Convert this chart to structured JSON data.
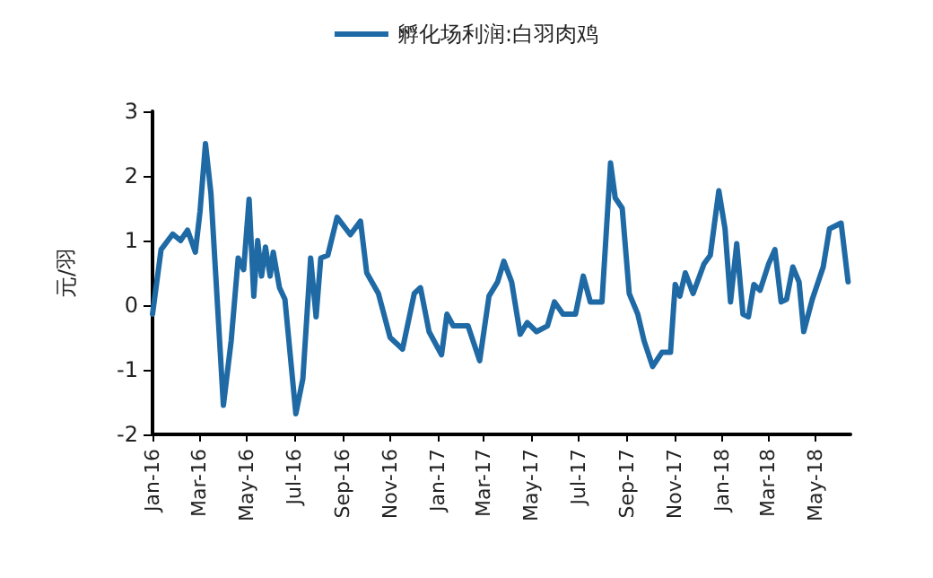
{
  "chart_data": {
    "type": "line",
    "ylabel": "元/羽",
    "legend": "top",
    "grid": false,
    "xlim": [
      "2016-01-01",
      "2018-06-15"
    ],
    "xticks": [
      {
        "value": "2016-01-01",
        "label": "Jan-16"
      },
      {
        "value": "2016-03-01",
        "label": "Mar-16"
      },
      {
        "value": "2016-05-01",
        "label": "May-16"
      },
      {
        "value": "2016-07-01",
        "label": "Jul-16"
      },
      {
        "value": "2016-09-01",
        "label": "Sep-16"
      },
      {
        "value": "2016-11-01",
        "label": "Nov-16"
      },
      {
        "value": "2017-01-01",
        "label": "Jan-17"
      },
      {
        "value": "2017-03-01",
        "label": "Mar-17"
      },
      {
        "value": "2017-05-01",
        "label": "May-17"
      },
      {
        "value": "2017-07-01",
        "label": "Jul-17"
      },
      {
        "value": "2017-09-01",
        "label": "Sep-17"
      },
      {
        "value": "2017-11-01",
        "label": "Nov-17"
      },
      {
        "value": "2018-01-01",
        "label": "Jan-18"
      },
      {
        "value": "2018-03-01",
        "label": "Mar-18"
      },
      {
        "value": "2018-05-01",
        "label": "May-18"
      }
    ],
    "ylim": [
      -2,
      3
    ],
    "yticks": [
      -2,
      -1,
      0,
      1,
      2,
      3
    ],
    "x": [
      "2016-01-01",
      "2016-01-12",
      "2016-01-27",
      "2016-02-06",
      "2016-02-15",
      "2016-02-25",
      "2016-03-02",
      "2016-03-09",
      "2016-03-16",
      "2016-04-01",
      "2016-04-11",
      "2016-04-20",
      "2016-04-27",
      "2016-05-04",
      "2016-05-10",
      "2016-05-15",
      "2016-05-20",
      "2016-05-25",
      "2016-05-31",
      "2016-06-04",
      "2016-06-12",
      "2016-06-19",
      "2016-07-03",
      "2016-07-12",
      "2016-07-22",
      "2016-07-29",
      "2016-08-04",
      "2016-08-13",
      "2016-08-25",
      "2016-09-11",
      "2016-09-24",
      "2016-10-02",
      "2016-10-17",
      "2016-11-01",
      "2016-11-17",
      "2016-12-02",
      "2016-12-10",
      "2016-12-21",
      "2017-01-06",
      "2017-01-13",
      "2017-01-21",
      "2017-02-09",
      "2017-02-24",
      "2017-03-08",
      "2017-03-19",
      "2017-03-27",
      "2017-04-06",
      "2017-04-17",
      "2017-04-26",
      "2017-05-08",
      "2017-05-22",
      "2017-05-31",
      "2017-06-11",
      "2017-06-27",
      "2017-07-07",
      "2017-07-16",
      "2017-07-31",
      "2017-08-11",
      "2017-08-17",
      "2017-08-26",
      "2017-09-04",
      "2017-09-15",
      "2017-09-23",
      "2017-10-04",
      "2017-10-16",
      "2017-10-27",
      "2017-11-02",
      "2017-11-08",
      "2017-11-15",
      "2017-11-25",
      "2017-12-09",
      "2017-12-17",
      "2017-12-28",
      "2018-01-05",
      "2018-01-12",
      "2018-01-20",
      "2018-01-28",
      "2018-02-04",
      "2018-02-11",
      "2018-02-19",
      "2018-03-02",
      "2018-03-10",
      "2018-03-18",
      "2018-03-25",
      "2018-04-02",
      "2018-04-10",
      "2018-04-16",
      "2018-04-27",
      "2018-05-11",
      "2018-05-19",
      "2018-06-03",
      "2018-06-12"
    ],
    "series": [
      {
        "name": "孵化场利润:白羽肉鸡",
        "color": "#1f6aa5",
        "values": [
          -0.14,
          0.86,
          1.1,
          1.0,
          1.16,
          0.82,
          1.45,
          2.5,
          1.73,
          -1.55,
          -0.55,
          0.73,
          0.55,
          1.64,
          0.14,
          1.0,
          0.45,
          0.9,
          0.45,
          0.82,
          0.27,
          0.09,
          -1.68,
          -1.14,
          0.73,
          -0.18,
          0.73,
          0.77,
          1.36,
          1.09,
          1.3,
          0.5,
          0.18,
          -0.5,
          -0.68,
          0.18,
          0.27,
          -0.41,
          -0.77,
          -0.14,
          -0.32,
          -0.32,
          -0.86,
          0.14,
          0.36,
          0.68,
          0.36,
          -0.45,
          -0.27,
          -0.41,
          -0.32,
          0.05,
          -0.14,
          -0.14,
          0.45,
          0.05,
          0.05,
          2.2,
          1.66,
          1.5,
          0.18,
          -0.14,
          -0.55,
          -0.95,
          -0.73,
          -0.73,
          0.32,
          0.14,
          0.5,
          0.18,
          0.64,
          0.77,
          1.77,
          1.18,
          0.05,
          0.95,
          -0.14,
          -0.18,
          0.32,
          0.23,
          0.64,
          0.86,
          0.05,
          0.09,
          0.59,
          0.36,
          -0.41,
          0.09,
          0.59,
          1.18,
          1.27,
          0.36
        ]
      }
    ]
  }
}
